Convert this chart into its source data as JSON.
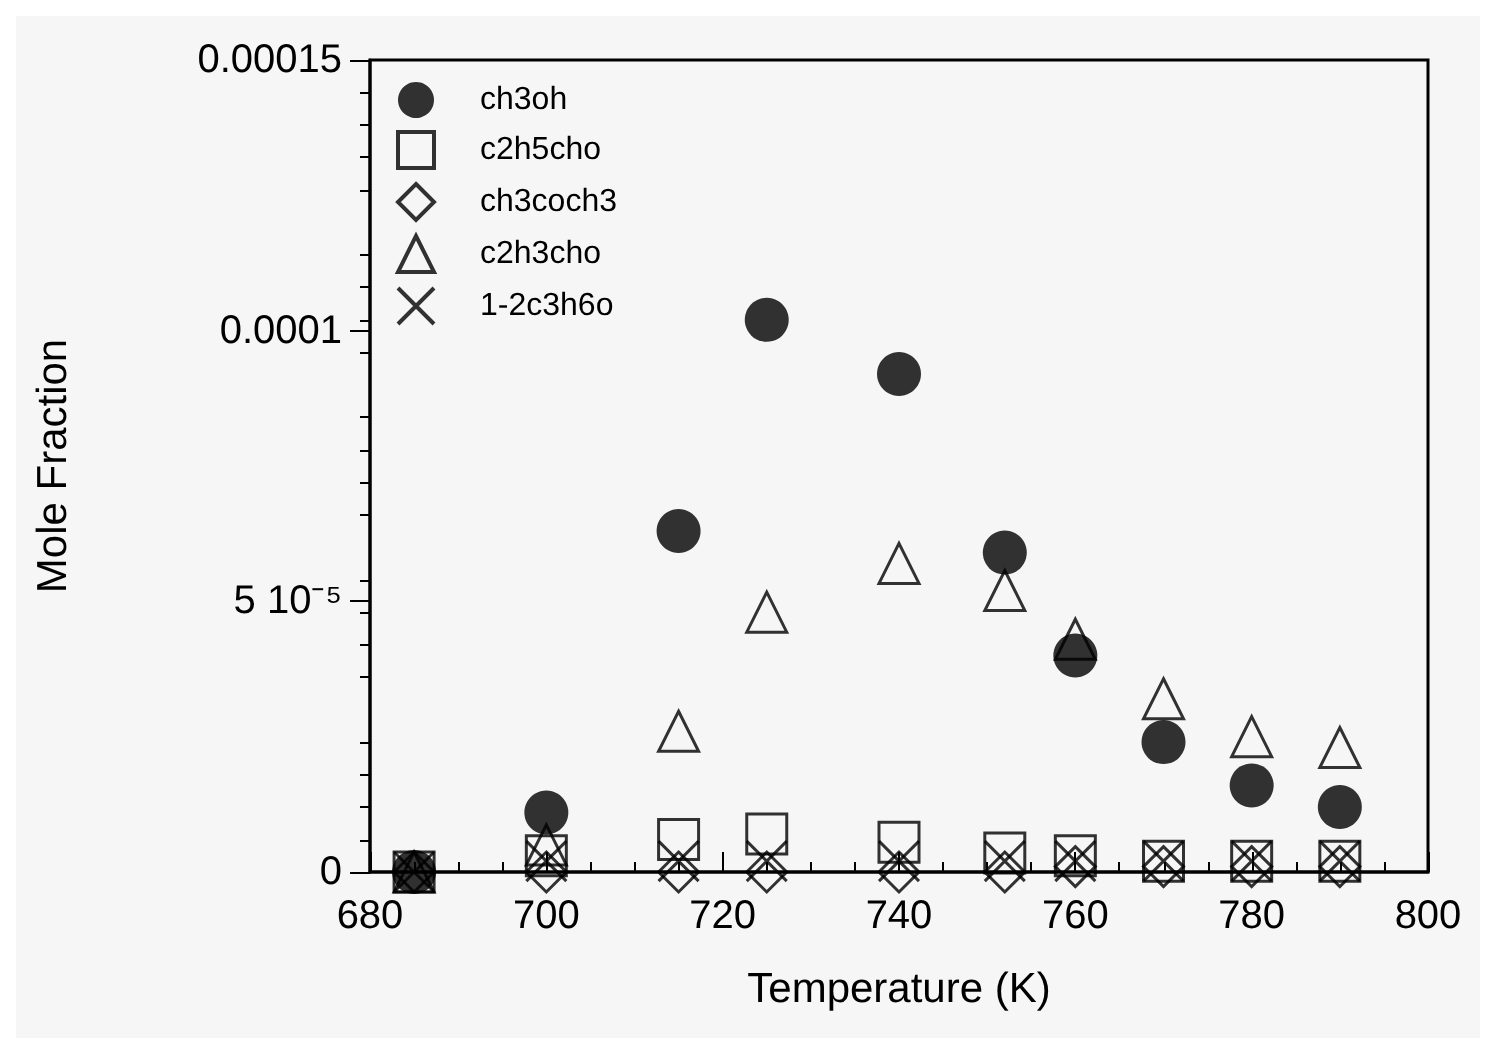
{
  "chart_data": {
    "type": "scatter",
    "xlabel": "Temperature (K)",
    "ylabel": "Mole Fraction",
    "x": [
      685,
      700,
      715,
      725,
      740,
      752,
      760,
      770,
      780,
      790
    ],
    "xlim": [
      680,
      800
    ],
    "xticks": [
      680,
      700,
      720,
      740,
      760,
      780,
      800
    ],
    "ylim": [
      0,
      0.00015
    ],
    "yticks": [
      0,
      {
        "value": 5e-05,
        "label": "5 10⁻⁵"
      },
      0.0001,
      0.00015
    ],
    "legend": "top left",
    "grid": false,
    "series": [
      {
        "name": "ch3oh",
        "color": "#000000",
        "marker": "circle",
        "values": [
          0,
          1.1e-05,
          6.3e-05,
          0.000102,
          9.2e-05,
          5.9e-05,
          4e-05,
          2.4e-05,
          1.6e-05,
          1.2e-05
        ]
      },
      {
        "name": "c2h5cho",
        "color": "#000000",
        "marker": "square",
        "values": [
          0,
          3e-06,
          6e-06,
          7e-06,
          5.5e-06,
          3.5e-06,
          3e-06,
          2e-06,
          2e-06,
          2e-06
        ]
      },
      {
        "name": "ch3coch3",
        "color": "#000000",
        "marker": "diamond",
        "values": [
          0,
          0,
          0,
          0,
          0,
          0,
          1e-06,
          1e-06,
          1e-06,
          1e-06
        ]
      },
      {
        "name": "c2h3cho",
        "color": "#000000",
        "marker": "triangle",
        "values": [
          0,
          5e-06,
          2.6e-05,
          4.8e-05,
          5.7e-05,
          5.2e-05,
          4.3e-05,
          3.2e-05,
          2.5e-05,
          2.3e-05
        ]
      },
      {
        "name": "1-2c3h6o",
        "color": "#000000",
        "marker": "cross",
        "values": [
          0,
          2e-06,
          2e-06,
          2e-06,
          2e-06,
          2e-06,
          2e-06,
          2e-06,
          2e-06,
          2e-06
        ]
      }
    ]
  }
}
